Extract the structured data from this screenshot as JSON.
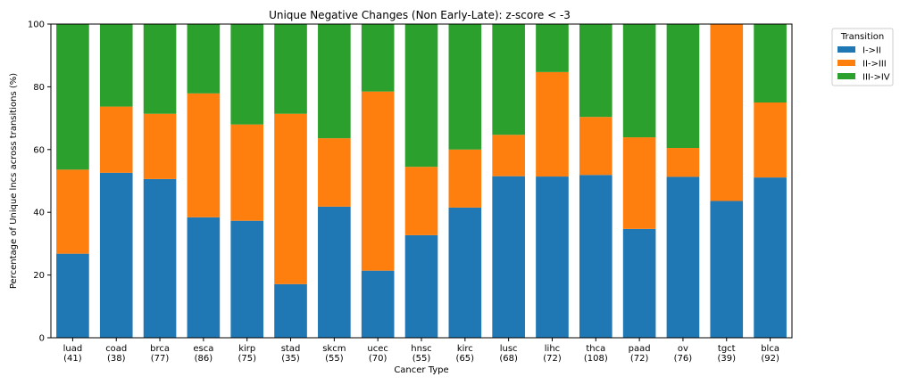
{
  "chart_data": {
    "type": "bar",
    "stacked": true,
    "title": "Unique Negative Changes (Non Early-Late): z-score < -3",
    "xlabel": "Cancer Type",
    "ylabel": "Percentage of Unique lncs across transitions (%)",
    "ylim": [
      0,
      100
    ],
    "yticks": [
      "0",
      "20",
      "40",
      "60",
      "80",
      "100"
    ],
    "grid": false,
    "legend_position": "outside upper-right",
    "legend_title": "Transition",
    "categories": [
      "luad",
      "coad",
      "brca",
      "esca",
      "kirp",
      "stad",
      "skcm",
      "ucec",
      "hnsc",
      "kirc",
      "lusc",
      "lihc",
      "thca",
      "paad",
      "ov",
      "tgct",
      "blca"
    ],
    "category_counts": [
      "(41)",
      "(38)",
      "(77)",
      "(86)",
      "(75)",
      "(35)",
      "(55)",
      "(70)",
      "(55)",
      "(65)",
      "(68)",
      "(72)",
      "(108)",
      "(72)",
      "(76)",
      "(39)",
      "(92)"
    ],
    "series": [
      {
        "name": "I->II",
        "color": "#1f77b4",
        "values": [
          26.8,
          52.6,
          50.6,
          38.4,
          37.3,
          17.1,
          41.8,
          21.4,
          32.7,
          41.5,
          51.5,
          51.4,
          51.9,
          34.7,
          51.3,
          43.6,
          51.1
        ]
      },
      {
        "name": "II->III",
        "color": "#ff7f0e",
        "values": [
          26.8,
          21.1,
          20.8,
          39.5,
          30.7,
          54.3,
          21.8,
          57.1,
          21.8,
          18.5,
          13.2,
          33.3,
          18.5,
          29.2,
          9.2,
          56.4,
          23.9
        ]
      },
      {
        "name": "III->IV",
        "color": "#2ca02c",
        "values": [
          46.4,
          26.3,
          28.6,
          22.1,
          32.0,
          28.6,
          36.4,
          21.5,
          45.5,
          40.0,
          35.3,
          15.3,
          29.6,
          36.1,
          39.5,
          0.0,
          25.0
        ]
      }
    ]
  }
}
